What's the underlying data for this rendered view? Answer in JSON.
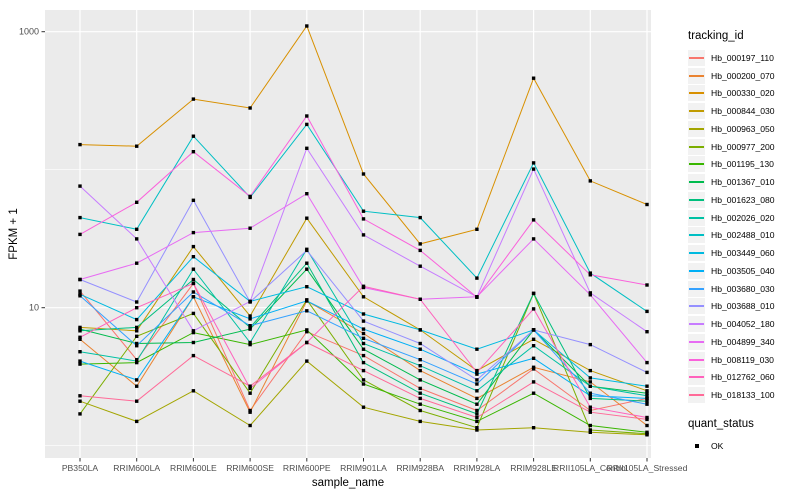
{
  "chart_data": {
    "type": "line",
    "title": "",
    "xlabel": "sample_name",
    "ylabel": "FPKM + 1",
    "y_scale": "log10",
    "y_major_ticks": [
      10,
      1000
    ],
    "y_minor_gridlines": [
      1,
      100
    ],
    "ylim": [
      0.81,
      1438
    ],
    "grid": "on",
    "panel_bg": "#EBEBEB",
    "grid_color": "#FFFFFF",
    "tick_label_color": "#4D4D4D",
    "point_color": "#000000",
    "legend_position": "right",
    "categories": [
      "PB350LA",
      "RRIM600LA",
      "RRIM600LE",
      "RRIM600SE",
      "RRIM600PE",
      "RRIM901LA",
      "RRIM928BA",
      "RRIM928LA",
      "RRIM928LE",
      "RRII105LA_Control",
      "RRII105LA_Stressed"
    ],
    "series": [
      {
        "name": "Hb_000197_110",
        "color": "#F8766D",
        "values": [
          13.2,
          4.2,
          15,
          1.8,
          6.7,
          4.5,
          2.6,
          1.8,
          3.6,
          1.8,
          2.2
        ]
      },
      {
        "name": "Hb_000200_070",
        "color": "#EA8331",
        "values": [
          5.9,
          2.7,
          12,
          1.75,
          11.2,
          6.5,
          3.5,
          2.2,
          3.7,
          2.9,
          1.4
        ]
      },
      {
        "name": "Hb_000330_020",
        "color": "#D89000",
        "values": [
          152,
          148,
          325,
          280,
          1100,
          93,
          29,
          37,
          460,
          83,
          56
        ]
      },
      {
        "name": "Hb_000844_030",
        "color": "#C09B00",
        "values": [
          7.2,
          6.8,
          27.7,
          8.7,
          44.5,
          12,
          6.9,
          3.5,
          5.9,
          3.5,
          2.5
        ]
      },
      {
        "name": "Hb_000963_050",
        "color": "#A3A500",
        "values": [
          2.1,
          1.5,
          2.5,
          1.4,
          4.1,
          1.9,
          1.5,
          1.3,
          1.35,
          1.25,
          1.2
        ]
      },
      {
        "name": "Hb_000977_200",
        "color": "#7CAE00",
        "values": [
          1.7,
          6.2,
          9.1,
          2.4,
          11.4,
          3,
          1.8,
          1.35,
          12.7,
          1.3,
          1.22
        ]
      },
      {
        "name": "Hb_001195_130",
        "color": "#39B600",
        "values": [
          3.9,
          4,
          6.6,
          5.4,
          6.9,
          2.8,
          2,
          1.5,
          2.4,
          1.4,
          1.25
        ]
      },
      {
        "name": "Hb_001367_010",
        "color": "#00BB4E",
        "values": [
          7,
          5.5,
          5.6,
          7,
          19,
          5,
          3,
          2,
          6.9,
          2.7,
          2.4
        ]
      },
      {
        "name": "Hb_001623_080",
        "color": "#00BF7D",
        "values": [
          6.8,
          7.2,
          16,
          7.2,
          21,
          4,
          2.4,
          1.7,
          12.7,
          2.2,
          2.1
        ]
      },
      {
        "name": "Hb_002026_020",
        "color": "#00C1A3",
        "values": [
          4.8,
          4.1,
          19,
          5.6,
          26.5,
          5.5,
          3.8,
          2.5,
          5.3,
          2.7,
          2.3
        ]
      },
      {
        "name": "Hb_002488_010",
        "color": "#00BFC4",
        "values": [
          45,
          37,
          175,
          63,
          213,
          50,
          45,
          16.4,
          112,
          17.8,
          9.4
        ]
      },
      {
        "name": "Hb_003449_060",
        "color": "#00BAE0",
        "values": [
          12.5,
          8.2,
          23.4,
          11.1,
          14.2,
          9,
          6.9,
          5,
          6.9,
          3.1,
          2.7
        ]
      },
      {
        "name": "Hb_003505_040",
        "color": "#00B0F6",
        "values": [
          4.1,
          3,
          12,
          8.3,
          11.2,
          7,
          5,
          3.3,
          4.3,
          2.3,
          2.2
        ]
      },
      {
        "name": "Hb_003680_030",
        "color": "#35A2FF",
        "values": [
          12.2,
          5.3,
          13,
          7.4,
          9.5,
          6,
          4.2,
          2.8,
          6.9,
          2.4,
          2
        ]
      },
      {
        "name": "Hb_003688_010",
        "color": "#9590FF",
        "values": [
          16,
          11,
          60,
          11,
          26,
          8,
          5.5,
          3,
          6.9,
          5.4,
          3.4
        ]
      },
      {
        "name": "Hb_004052_180",
        "color": "#C77CFF",
        "values": [
          76,
          31.5,
          6.8,
          11.1,
          143,
          33.7,
          20,
          12,
          101,
          12.8,
          6.7
        ]
      },
      {
        "name": "Hb_004899_340",
        "color": "#E76BF3",
        "values": [
          16,
          21,
          35,
          37.7,
          67,
          14,
          11.5,
          12,
          31.5,
          12.4,
          4
        ]
      },
      {
        "name": "Hb_008119_030",
        "color": "#FA62DB",
        "values": [
          34,
          58,
          135,
          64,
          245,
          44,
          26,
          11.9,
          43.3,
          17.3,
          14.6
        ]
      },
      {
        "name": "Hb_012762_060",
        "color": "#FF62BC",
        "values": [
          6.1,
          10,
          15,
          2.6,
          5.6,
          14.3,
          11.5,
          3.4,
          9.8,
          1.9,
          1.6
        ]
      },
      {
        "name": "Hb_018133_100",
        "color": "#FF6A98",
        "values": [
          2.3,
          2.1,
          4.5,
          2.7,
          5.6,
          3.5,
          2.2,
          1.6,
          2.9,
          1.75,
          1.55
        ]
      }
    ],
    "legend": {
      "title": "tracking_id"
    },
    "legend2": {
      "title": "quant_status",
      "items": [
        {
          "label": "OK",
          "shape": "point"
        }
      ]
    }
  }
}
